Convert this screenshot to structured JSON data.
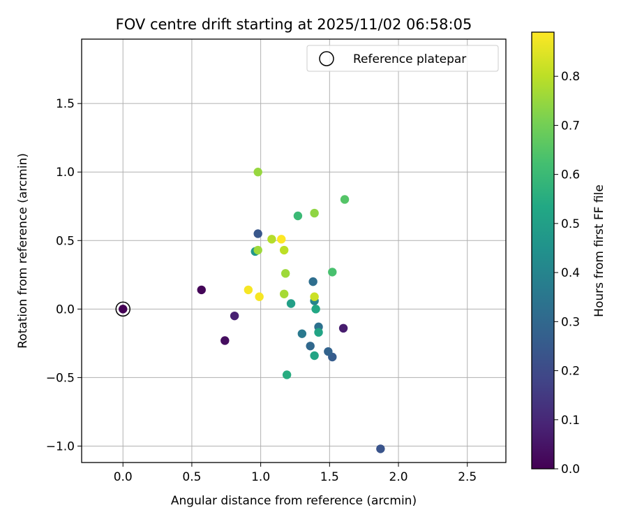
{
  "chart_data": {
    "type": "scatter",
    "title": "FOV centre drift starting at 2025/11/02 06:58:05",
    "xlabel": "Angular distance from reference (arcmin)",
    "ylabel": "Rotation from reference (arcmin)",
    "xlim": [
      -0.3,
      2.78
    ],
    "ylim": [
      -1.12,
      1.97
    ],
    "xticks": [
      0.0,
      0.5,
      1.0,
      1.5,
      2.0,
      2.5
    ],
    "xtick_labels": [
      "0.0",
      "0.5",
      "1.0",
      "1.5",
      "2.0",
      "2.5"
    ],
    "yticks": [
      -1.0,
      -0.5,
      0.0,
      0.5,
      1.0,
      1.5
    ],
    "ytick_labels": [
      "−1.0",
      "−0.5",
      "0.0",
      "0.5",
      "1.0",
      "1.5"
    ],
    "grid": true,
    "legend": {
      "position": "top-right",
      "entries": [
        "Reference platepar"
      ]
    },
    "reference_point": {
      "x": 0.0,
      "y": 0.0
    },
    "colorbar": {
      "label": "Hours from first FF file",
      "colormap": "viridis",
      "range": [
        0.0,
        0.89
      ],
      "ticks": [
        0.0,
        0.1,
        0.2,
        0.3,
        0.4,
        0.5,
        0.6,
        0.7,
        0.8
      ],
      "tick_labels": [
        "0.0",
        "0.1",
        "0.2",
        "0.3",
        "0.4",
        "0.5",
        "0.6",
        "0.7",
        "0.8"
      ]
    },
    "points": [
      {
        "x": 0.0,
        "y": 0.0,
        "c": 0.0
      },
      {
        "x": 0.57,
        "y": 0.14,
        "c": 0.01
      },
      {
        "x": 0.74,
        "y": -0.23,
        "c": 0.03
      },
      {
        "x": 0.81,
        "y": -0.05,
        "c": 0.08
      },
      {
        "x": 1.6,
        "y": -0.14,
        "c": 0.07
      },
      {
        "x": 1.87,
        "y": -1.02,
        "c": 0.23
      },
      {
        "x": 0.98,
        "y": 0.55,
        "c": 0.24
      },
      {
        "x": 1.52,
        "y": -0.35,
        "c": 0.26
      },
      {
        "x": 1.49,
        "y": -0.31,
        "c": 0.28
      },
      {
        "x": 1.36,
        "y": -0.27,
        "c": 0.3
      },
      {
        "x": 1.38,
        "y": 0.2,
        "c": 0.32
      },
      {
        "x": 1.42,
        "y": -0.13,
        "c": 0.33
      },
      {
        "x": 1.3,
        "y": -0.18,
        "c": 0.36
      },
      {
        "x": 1.39,
        "y": 0.06,
        "c": 0.4
      },
      {
        "x": 0.96,
        "y": 0.42,
        "c": 0.47
      },
      {
        "x": 1.22,
        "y": 0.04,
        "c": 0.5
      },
      {
        "x": 1.42,
        "y": -0.17,
        "c": 0.52
      },
      {
        "x": 1.39,
        "y": -0.34,
        "c": 0.52
      },
      {
        "x": 1.4,
        "y": 0.0,
        "c": 0.53
      },
      {
        "x": 1.19,
        "y": -0.48,
        "c": 0.55
      },
      {
        "x": 1.27,
        "y": 0.68,
        "c": 0.6
      },
      {
        "x": 1.52,
        "y": 0.27,
        "c": 0.63
      },
      {
        "x": 1.61,
        "y": 0.8,
        "c": 0.65
      },
      {
        "x": 1.39,
        "y": 0.7,
        "c": 0.74
      },
      {
        "x": 0.98,
        "y": 1.0,
        "c": 0.75
      },
      {
        "x": 1.18,
        "y": 0.26,
        "c": 0.76
      },
      {
        "x": 1.17,
        "y": 0.11,
        "c": 0.77
      },
      {
        "x": 0.98,
        "y": 0.43,
        "c": 0.76
      },
      {
        "x": 1.08,
        "y": 0.51,
        "c": 0.79
      },
      {
        "x": 1.17,
        "y": 0.43,
        "c": 0.8
      },
      {
        "x": 1.39,
        "y": 0.09,
        "c": 0.82
      },
      {
        "x": 0.91,
        "y": 0.14,
        "c": 0.88
      },
      {
        "x": 0.99,
        "y": 0.09,
        "c": 0.88
      },
      {
        "x": 1.15,
        "y": 0.51,
        "c": 0.89
      }
    ]
  }
}
